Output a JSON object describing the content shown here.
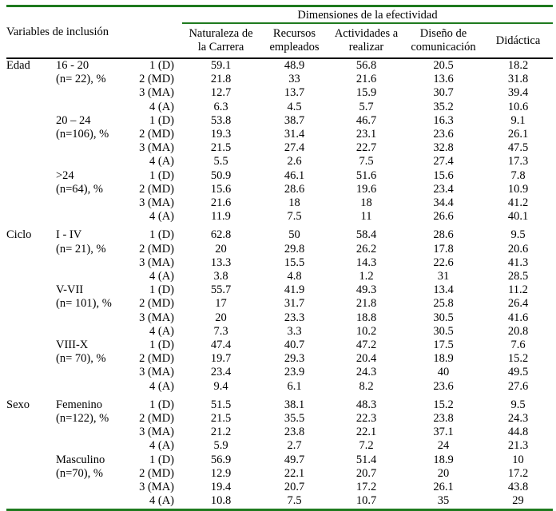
{
  "header": {
    "variables_label": "Variables de inclusión",
    "dimensions_label": "Dimensiones de la efectividad",
    "columns": [
      [
        "Naturaleza de",
        "la Carrera"
      ],
      [
        "Recursos",
        "empleados"
      ],
      [
        "Actividades a",
        "realizar"
      ],
      [
        "Diseño de",
        "comunicación"
      ],
      [
        "Didáctica"
      ]
    ]
  },
  "groups": [
    {
      "variable": "Edad",
      "subgroups": [
        {
          "label": [
            "16 - 20",
            "(n= 22), %"
          ],
          "rows": [
            {
              "level": "1 (D)",
              "values": [
                "59.1",
                "48.9",
                "56.8",
                "20.5",
                "18.2"
              ]
            },
            {
              "level": "2 (MD)",
              "values": [
                "21.8",
                "33",
                "21.6",
                "13.6",
                "31.8"
              ]
            },
            {
              "level": "3 (MA)",
              "values": [
                "12.7",
                "13.7",
                "15.9",
                "30.7",
                "39.4"
              ]
            },
            {
              "level": "4 (A)",
              "values": [
                "6.3",
                "4.5",
                "5.7",
                "35.2",
                "10.6"
              ]
            }
          ]
        },
        {
          "label": [
            "20 – 24",
            "(n=106), %"
          ],
          "rows": [
            {
              "level": "1 (D)",
              "values": [
                "53.8",
                "38.7",
                "46.7",
                "16.3",
                "9.1"
              ]
            },
            {
              "level": "2 (MD)",
              "values": [
                "19.3",
                "31.4",
                "23.1",
                "23.6",
                "26.1"
              ]
            },
            {
              "level": "3 (MA)",
              "values": [
                "21.5",
                "27.4",
                "22.7",
                "32.8",
                "47.5"
              ]
            },
            {
              "level": "4 (A)",
              "values": [
                "5.5",
                "2.6",
                "7.5",
                "27.4",
                "17.3"
              ]
            }
          ]
        },
        {
          "label": [
            ">24",
            "(n=64), %"
          ],
          "rows": [
            {
              "level": "1 (D)",
              "values": [
                "50.9",
                "46.1",
                "51.6",
                "15.6",
                "7.8"
              ]
            },
            {
              "level": "2 (MD)",
              "values": [
                "15.6",
                "28.6",
                "19.6",
                "23.4",
                "10.9"
              ]
            },
            {
              "level": "3 (MA)",
              "values": [
                "21.6",
                "18",
                "18",
                "34.4",
                "41.2"
              ]
            },
            {
              "level": "4 (A)",
              "values": [
                "11.9",
                "7.5",
                "11",
                "26.6",
                "40.1"
              ]
            }
          ]
        }
      ]
    },
    {
      "variable": "Ciclo",
      "subgroups": [
        {
          "label": [
            "I - IV",
            "(n= 21), %"
          ],
          "rows": [
            {
              "level": "1 (D)",
              "values": [
                "62.8",
                "50",
                "58.4",
                "28.6",
                "9.5"
              ]
            },
            {
              "level": "2 (MD)",
              "values": [
                "20",
                "29.8",
                "26.2",
                "17.8",
                "20.6"
              ]
            },
            {
              "level": "3 (MA)",
              "values": [
                "13.3",
                "15.5",
                "14.3",
                "22.6",
                "41.3"
              ]
            },
            {
              "level": "4 (A)",
              "values": [
                "3.8",
                "4.8",
                "1.2",
                "31",
                "28.5"
              ]
            }
          ]
        },
        {
          "label": [
            "V-VII",
            "(n= 101), %"
          ],
          "rows": [
            {
              "level": "1 (D)",
              "values": [
                "55.7",
                "41.9",
                "49.3",
                "13.4",
                "11.2"
              ]
            },
            {
              "level": "2 (MD)",
              "values": [
                "17",
                "31.7",
                "21.8",
                "25.8",
                "26.4"
              ]
            },
            {
              "level": "3 (MA)",
              "values": [
                "20",
                "23.3",
                "18.8",
                "30.5",
                "41.6"
              ]
            },
            {
              "level": "4 (A)",
              "values": [
                "7.3",
                "3.3",
                "10.2",
                "30.5",
                "20.8"
              ]
            }
          ]
        },
        {
          "label": [
            "VIII-X",
            "(n= 70), %"
          ],
          "rows": [
            {
              "level": "1 (D)",
              "values": [
                "47.4",
                "40.7",
                "47.2",
                "17.5",
                "7.6"
              ]
            },
            {
              "level": "2 (MD)",
              "values": [
                "19.7",
                "29.3",
                "20.4",
                "18.9",
                "15.2"
              ]
            },
            {
              "level": "3 (MA)",
              "values": [
                "23.4",
                "23.9",
                "24.3",
                "40",
                "49.5"
              ]
            },
            {
              "level": "4 (A)",
              "values": [
                "9.4",
                "6.1",
                "8.2",
                "23.6",
                "27.6"
              ]
            }
          ]
        }
      ]
    },
    {
      "variable": "Sexo",
      "subgroups": [
        {
          "label": [
            "Femenino",
            "(n=122), %"
          ],
          "rows": [
            {
              "level": "1 (D)",
              "values": [
                "51.5",
                "38.1",
                "48.3",
                "15.2",
                "9.5"
              ]
            },
            {
              "level": "2 (MD)",
              "values": [
                "21.5",
                "35.5",
                "22.3",
                "23.8",
                "24.3"
              ]
            },
            {
              "level": "3 (MA)",
              "values": [
                "21.2",
                "23.8",
                "22.1",
                "37.1",
                "44.8"
              ]
            },
            {
              "level": "4 (A)",
              "values": [
                "5.9",
                "2.7",
                "7.2",
                "24",
                "21.3"
              ]
            }
          ]
        },
        {
          "label": [
            "Masculino",
            "(n=70), %"
          ],
          "rows": [
            {
              "level": "1 (D)",
              "values": [
                "56.9",
                "49.7",
                "51.4",
                "18.9",
                "10"
              ]
            },
            {
              "level": "2 (MD)",
              "values": [
                "12.9",
                "22.1",
                "20.7",
                "20",
                "17.2"
              ]
            },
            {
              "level": "3 (MA)",
              "values": [
                "19.4",
                "20.7",
                "17.2",
                "26.1",
                "43.8"
              ]
            },
            {
              "level": "4 (A)",
              "values": [
                "10.8",
                "7.5",
                "10.7",
                "35",
                "29"
              ]
            }
          ]
        }
      ]
    }
  ]
}
